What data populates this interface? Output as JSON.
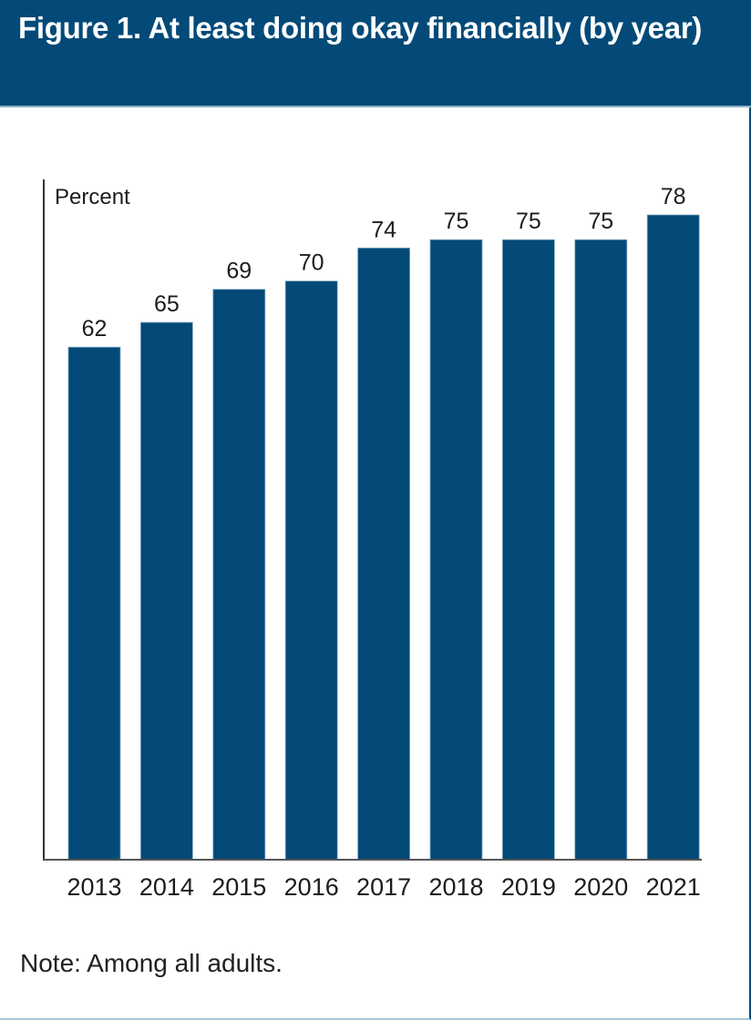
{
  "header": {
    "title": "Figure 1. At least doing okay financially (by year)",
    "background_color": "#034a78"
  },
  "note": "Note: Among all adults.",
  "chart_data": {
    "type": "bar",
    "title": "Figure 1. At least doing okay financially (by year)",
    "xlabel": "",
    "ylabel": "Percent",
    "categories": [
      "2013",
      "2014",
      "2015",
      "2016",
      "2017",
      "2018",
      "2019",
      "2020",
      "2021"
    ],
    "values": [
      62,
      65,
      69,
      70,
      74,
      75,
      75,
      75,
      78
    ],
    "data_labels": [
      "62",
      "65",
      "69",
      "70",
      "74",
      "75",
      "75",
      "75",
      "78"
    ],
    "ylim": [
      0,
      78
    ],
    "grid": false,
    "legend": "none",
    "bar_color": "#034a78",
    "note": "Note: Among all adults."
  }
}
